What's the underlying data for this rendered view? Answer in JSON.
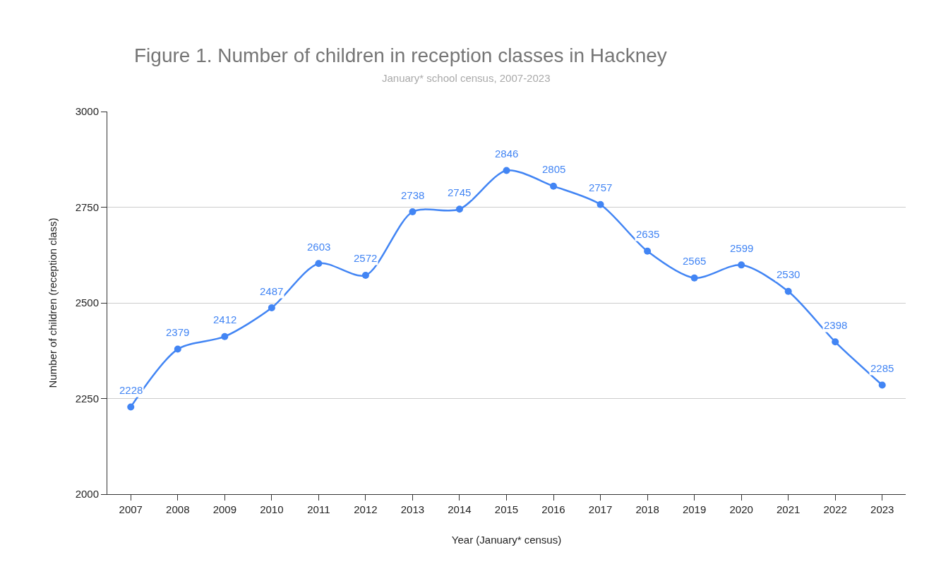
{
  "chart_data": {
    "type": "line",
    "title": "Figure 1. Number of children in reception classes in Hackney",
    "subtitle": "January* school census, 2007-2023",
    "xlabel": "Year (January* census)",
    "ylabel": "Number of children (reception class)",
    "categories": [
      "2007",
      "2008",
      "2009",
      "2010",
      "2011",
      "2012",
      "2013",
      "2014",
      "2015",
      "2016",
      "2017",
      "2018",
      "2019",
      "2020",
      "2021",
      "2022",
      "2023"
    ],
    "series": [
      {
        "color": "#4285f4",
        "values": [
          2228,
          2379,
          2412,
          2487,
          2603,
          2572,
          2738,
          2745,
          2846,
          2805,
          2757,
          2635,
          2565,
          2599,
          2530,
          2398,
          2285
        ]
      }
    ],
    "ylim": [
      2000,
      3000
    ],
    "yticks": [
      2000,
      2250,
      2500,
      2750,
      3000
    ],
    "grid": "y",
    "legend": false,
    "marker": "circle",
    "line_style": "solid",
    "data_labels": true
  }
}
